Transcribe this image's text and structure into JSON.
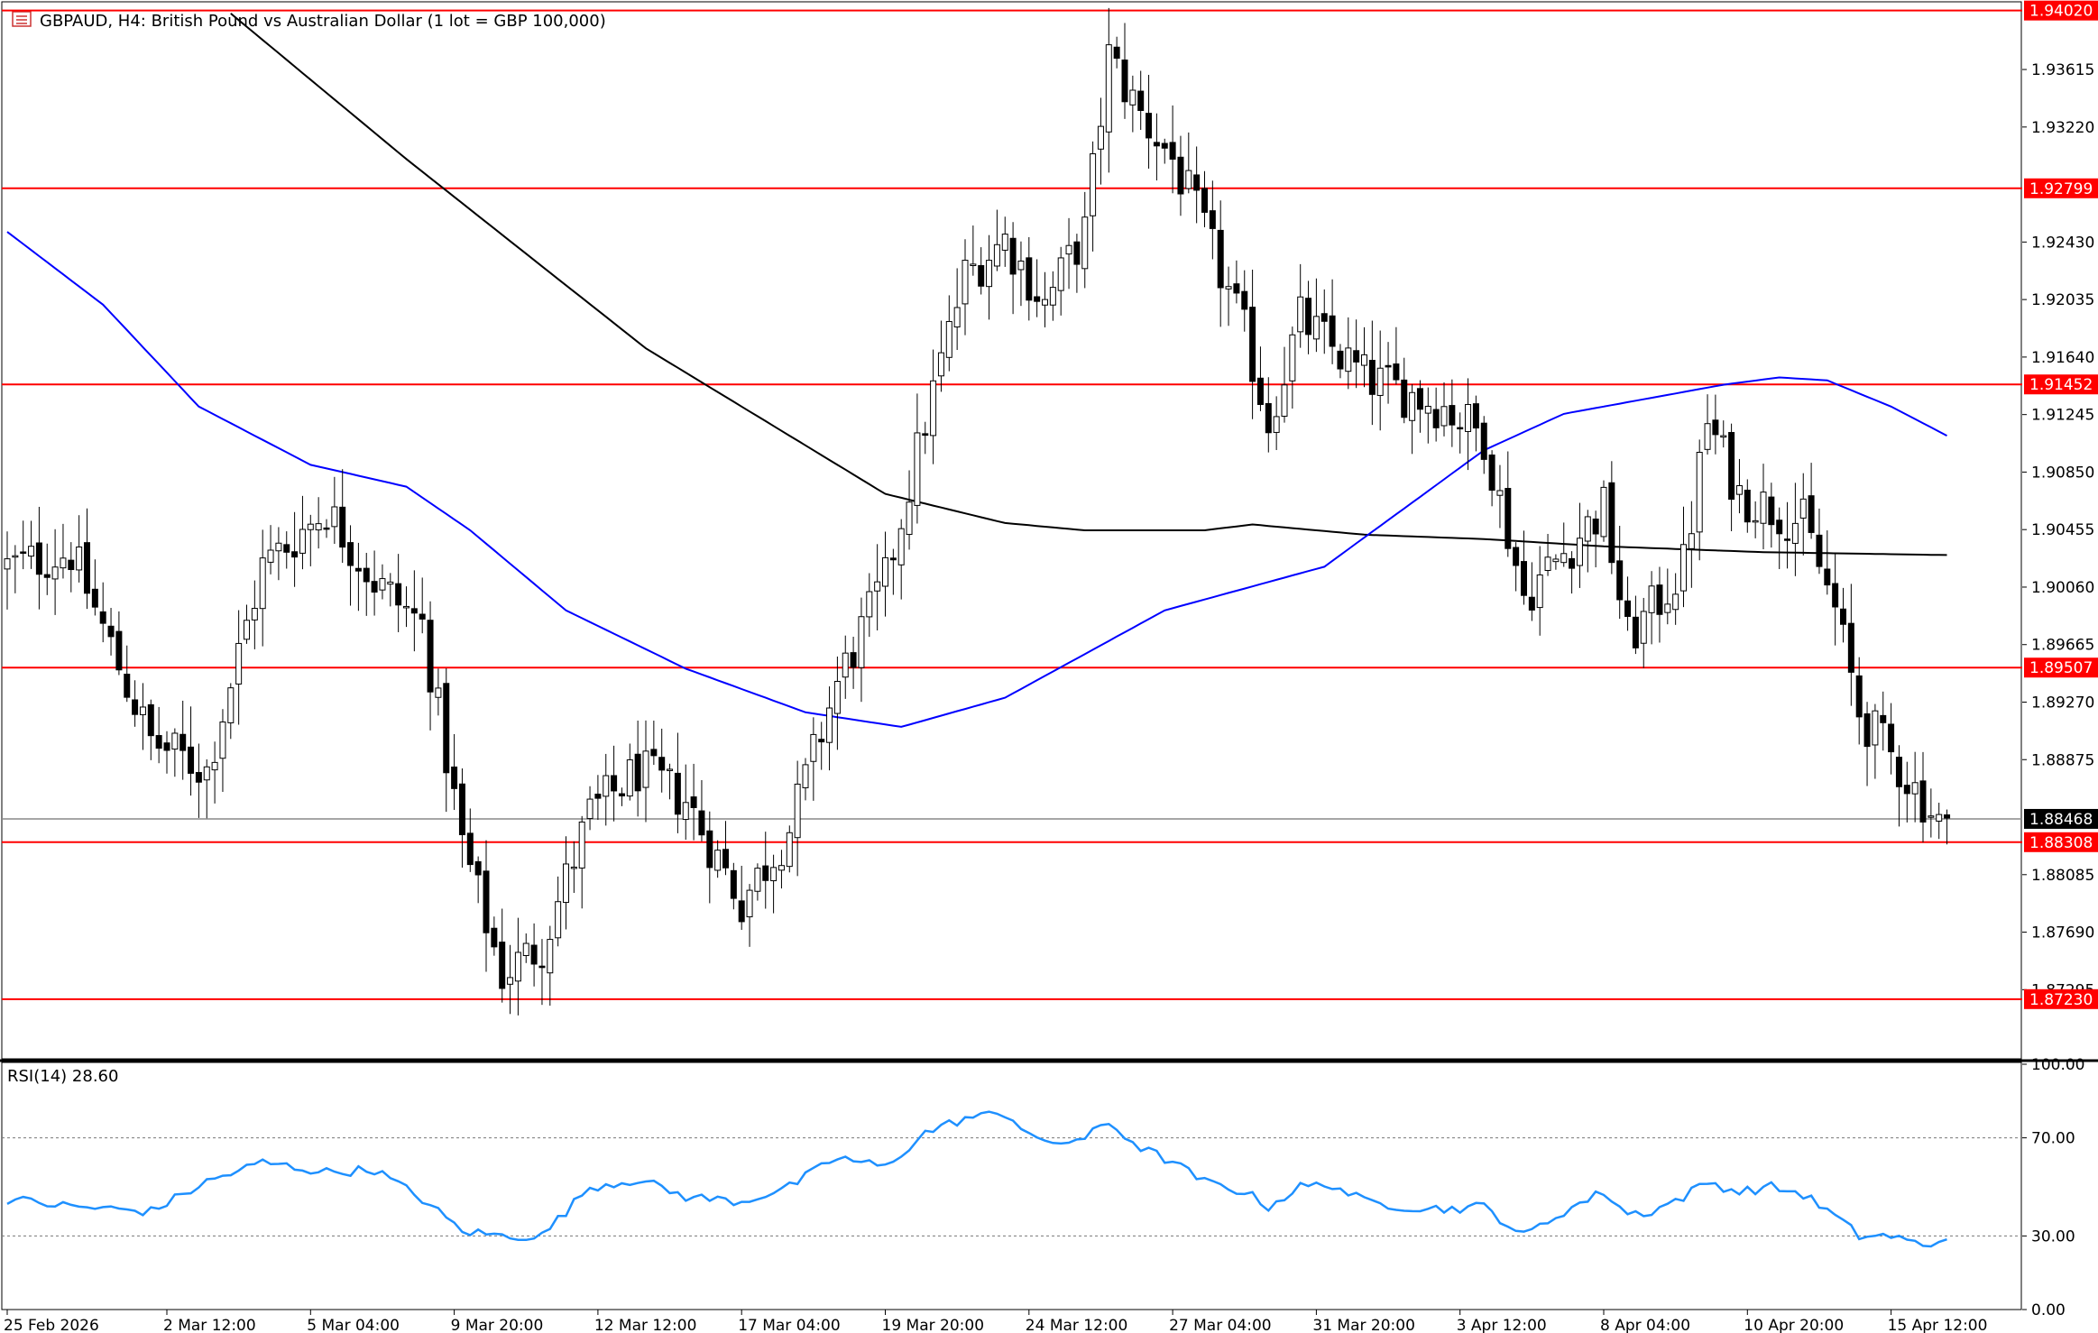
{
  "header": {
    "symbol_title": "GBPAUD, H4:  British Pound vs Australian Dollar (1 lot = GBP 100,000)",
    "menu_icon": "symbol-menu-icon"
  },
  "rsi_label": "RSI(14) 28.60",
  "colors": {
    "level_line": "#ff0000",
    "ma_fast": "#0000ff",
    "ma_slow": "#000000",
    "rsi_line": "#1e90ff",
    "current_price_tag": "#000000"
  },
  "price_axis_labels": [
    "1.93615",
    "1.93220",
    "1.92430",
    "1.92035",
    "1.91640",
    "1.91245",
    "1.90850",
    "1.90455",
    "1.90060",
    "1.89665",
    "1.89270",
    "1.88875",
    "1.88085",
    "1.87690",
    "1.87295"
  ],
  "rsi_axis_labels": [
    "100.00",
    "70.00",
    "30.00",
    "0.00"
  ],
  "time_axis_labels": [
    "25 Feb 2026",
    "2 Mar 12:00",
    "5 Mar 04:00",
    "9 Mar 20:00",
    "12 Mar 12:00",
    "17 Mar 04:00",
    "19 Mar 20:00",
    "24 Mar 12:00",
    "27 Mar 04:00",
    "31 Mar 20:00",
    "3 Apr 12:00",
    "8 Apr 04:00",
    "10 Apr 20:00",
    "15 Apr 12:00"
  ],
  "chart_data": {
    "type": "candlestick",
    "symbol": "GBPAUD",
    "timeframe": "H4",
    "ylim": [
      1.8682,
      1.9408
    ],
    "levels": [
      {
        "value": 1.9402,
        "label": "1.94020"
      },
      {
        "value": 1.92799,
        "label": "1.92799"
      },
      {
        "value": 1.91452,
        "label": "1.91452"
      },
      {
        "value": 1.89507,
        "label": "1.89507"
      },
      {
        "value": 1.88308,
        "label": "1.88308"
      },
      {
        "value": 1.8723,
        "label": "1.87230"
      }
    ],
    "current_price": {
      "value": 1.88468,
      "label": "1.88468"
    },
    "anchors": [
      [
        0,
        1.902
      ],
      [
        8,
        1.903
      ],
      [
        18,
        1.89
      ],
      [
        25,
        1.888
      ],
      [
        32,
        1.902
      ],
      [
        40,
        1.906
      ],
      [
        46,
        1.901
      ],
      [
        52,
        1.898
      ],
      [
        57,
        1.883
      ],
      [
        62,
        1.874
      ],
      [
        67,
        1.876
      ],
      [
        73,
        1.885
      ],
      [
        79,
        1.888
      ],
      [
        85,
        1.886
      ],
      [
        92,
        1.879
      ],
      [
        98,
        1.884
      ],
      [
        104,
        1.894
      ],
      [
        110,
        1.901
      ],
      [
        115,
        1.912
      ],
      [
        120,
        1.922
      ],
      [
        125,
        1.9245
      ],
      [
        130,
        1.92
      ],
      [
        135,
        1.925
      ],
      [
        138,
        1.937
      ],
      [
        142,
        1.933
      ],
      [
        146,
        1.93
      ],
      [
        150,
        1.925
      ],
      [
        155,
        1.918
      ],
      [
        158,
        1.912
      ],
      [
        162,
        1.919
      ],
      [
        166,
        1.917
      ],
      [
        170,
        1.915
      ],
      [
        175,
        1.914
      ],
      [
        180,
        1.913
      ],
      [
        185,
        1.911
      ],
      [
        190,
        1.9
      ],
      [
        195,
        1.903
      ],
      [
        200,
        1.906
      ],
      [
        203,
        1.897
      ],
      [
        206,
        1.899
      ],
      [
        210,
        1.902
      ],
      [
        213,
        1.912
      ],
      [
        217,
        1.907
      ],
      [
        221,
        1.906
      ],
      [
        225,
        1.905
      ],
      [
        229,
        1.899
      ],
      [
        232,
        1.892
      ],
      [
        236,
        1.889
      ],
      [
        240,
        1.886
      ],
      [
        243,
        1.8836
      ]
    ],
    "sma_slow": {
      "name": "",
      "points": [
        [
          28,
          1.94
        ],
        [
          50,
          1.93
        ],
        [
          80,
          1.917
        ],
        [
          110,
          1.907
        ],
        [
          125,
          1.905
        ],
        [
          135,
          1.9045
        ],
        [
          150,
          1.9045
        ],
        [
          156,
          1.9049
        ],
        [
          170,
          1.9042
        ],
        [
          185,
          1.9039
        ],
        [
          200,
          1.9034
        ],
        [
          220,
          1.903
        ],
        [
          243,
          1.9028
        ]
      ]
    },
    "sma_fast": {
      "name": "",
      "points": [
        [
          0,
          1.925
        ],
        [
          12,
          1.92
        ],
        [
          24,
          1.913
        ],
        [
          38,
          1.909
        ],
        [
          50,
          1.9075
        ],
        [
          58,
          1.9045
        ],
        [
          70,
          1.899
        ],
        [
          85,
          1.895
        ],
        [
          100,
          1.892
        ],
        [
          112,
          1.891
        ],
        [
          125,
          1.893
        ],
        [
          135,
          1.896
        ],
        [
          145,
          1.899
        ],
        [
          155,
          1.9005
        ],
        [
          165,
          1.902
        ],
        [
          175,
          1.906
        ],
        [
          185,
          1.91
        ],
        [
          195,
          1.9125
        ],
        [
          205,
          1.9135
        ],
        [
          215,
          1.9145
        ],
        [
          222,
          1.915
        ],
        [
          228,
          1.9148
        ],
        [
          236,
          1.913
        ],
        [
          243,
          1.911
        ]
      ]
    },
    "rsi": {
      "period": 14,
      "last_value": 28.6,
      "ylim": [
        0,
        100
      ],
      "levels": [
        70,
        30
      ],
      "anchors": [
        [
          0,
          45
        ],
        [
          8,
          42
        ],
        [
          18,
          40
        ],
        [
          25,
          52
        ],
        [
          32,
          60
        ],
        [
          40,
          56
        ],
        [
          46,
          57
        ],
        [
          52,
          45
        ],
        [
          57,
          32
        ],
        [
          62,
          30
        ],
        [
          67,
          30
        ],
        [
          73,
          50
        ],
        [
          79,
          53
        ],
        [
          85,
          46
        ],
        [
          92,
          44
        ],
        [
          98,
          50
        ],
        [
          104,
          62
        ],
        [
          110,
          58
        ],
        [
          115,
          72
        ],
        [
          120,
          78
        ],
        [
          125,
          80
        ],
        [
          130,
          67
        ],
        [
          135,
          70
        ],
        [
          138,
          76
        ],
        [
          142,
          66
        ],
        [
          146,
          60
        ],
        [
          150,
          52
        ],
        [
          155,
          48
        ],
        [
          158,
          42
        ],
        [
          162,
          50
        ],
        [
          166,
          51
        ],
        [
          170,
          44
        ],
        [
          175,
          42
        ],
        [
          180,
          41
        ],
        [
          185,
          42
        ],
        [
          190,
          30
        ],
        [
          195,
          40
        ],
        [
          200,
          48
        ],
        [
          203,
          39
        ],
        [
          206,
          40
        ],
        [
          210,
          46
        ],
        [
          213,
          52
        ],
        [
          217,
          48
        ],
        [
          221,
          50
        ],
        [
          225,
          47
        ],
        [
          229,
          38
        ],
        [
          232,
          30
        ],
        [
          236,
          30
        ],
        [
          240,
          26
        ],
        [
          243,
          28.6
        ]
      ]
    },
    "time_ticks": [
      {
        "index": 0,
        "label": "25 Feb 2026"
      },
      {
        "index": 20,
        "label": "2 Mar 12:00"
      },
      {
        "index": 38,
        "label": "5 Mar 04:00"
      },
      {
        "index": 56,
        "label": "9 Mar 20:00"
      },
      {
        "index": 74,
        "label": "12 Mar 12:00"
      },
      {
        "index": 92,
        "label": "17 Mar 04:00"
      },
      {
        "index": 110,
        "label": "19 Mar 20:00"
      },
      {
        "index": 128,
        "label": "24 Mar 12:00"
      },
      {
        "index": 146,
        "label": "27 Mar 04:00"
      },
      {
        "index": 164,
        "label": "31 Mar 20:00"
      },
      {
        "index": 182,
        "label": "3 Apr 12:00"
      },
      {
        "index": 200,
        "label": "8 Apr 04:00"
      },
      {
        "index": 218,
        "label": "10 Apr 20:00"
      },
      {
        "index": 236,
        "label": "15 Apr 12:00"
      }
    ]
  }
}
